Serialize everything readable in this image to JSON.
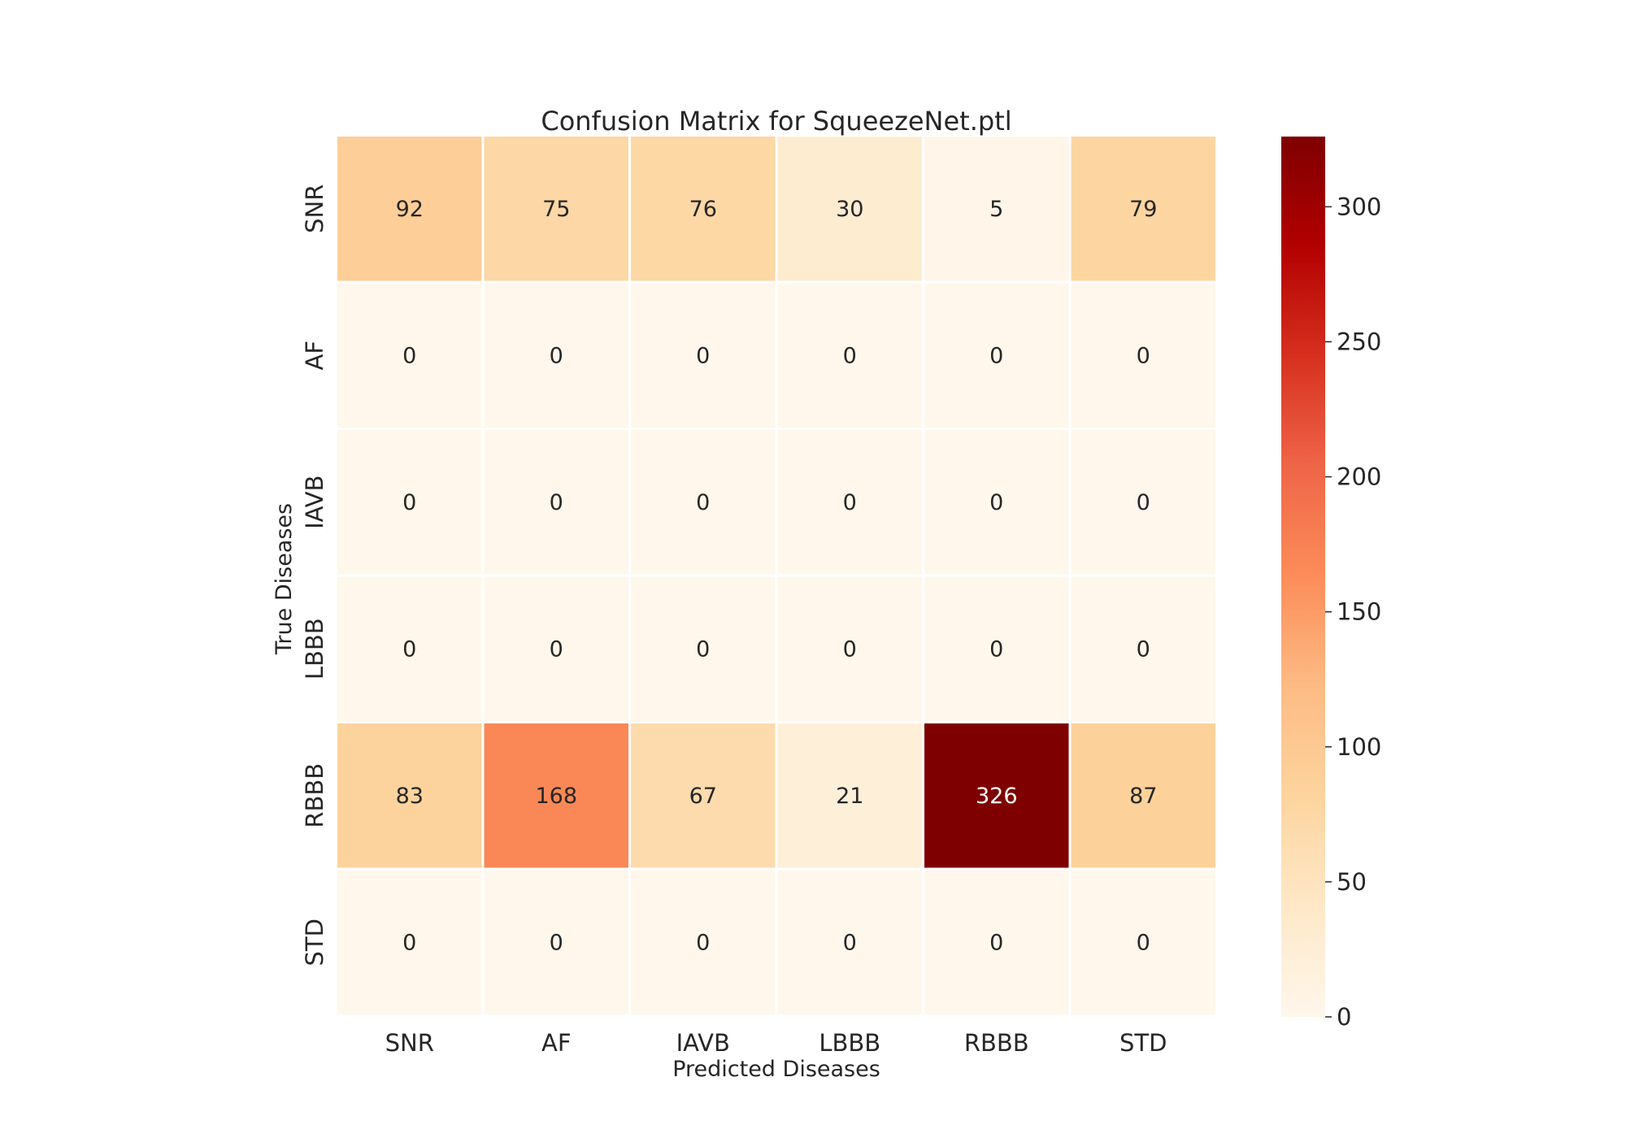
{
  "chart_data": {
    "type": "heatmap",
    "title": "Confusion Matrix for SqueezeNet.ptl",
    "xlabel": "Predicted Diseases",
    "ylabel": "True Diseases",
    "x_categories": [
      "SNR",
      "AF",
      "IAVB",
      "LBBB",
      "RBBB",
      "STD"
    ],
    "y_categories": [
      "SNR",
      "AF",
      "IAVB",
      "LBBB",
      "RBBB",
      "STD"
    ],
    "values": [
      [
        92,
        75,
        76,
        30,
        5,
        79
      ],
      [
        0,
        0,
        0,
        0,
        0,
        0
      ],
      [
        0,
        0,
        0,
        0,
        0,
        0
      ],
      [
        0,
        0,
        0,
        0,
        0,
        0
      ],
      [
        83,
        168,
        67,
        21,
        326,
        87
      ],
      [
        0,
        0,
        0,
        0,
        0,
        0
      ]
    ],
    "colormap": "OrRd",
    "colorbar": {
      "range": [
        0,
        326
      ],
      "ticks": [
        0,
        50,
        100,
        150,
        200,
        250,
        300
      ],
      "tick_labels": [
        "0",
        "50",
        "100",
        "150",
        "200",
        "250",
        "300"
      ],
      "placement": "right"
    },
    "colormap_stops": [
      "#fff7ec",
      "#fee8c8",
      "#fdd49e",
      "#fdbb84",
      "#fc8d59",
      "#ef6548",
      "#d7301f",
      "#b30000",
      "#7f0000"
    ],
    "annotations": true,
    "grid": false
  }
}
